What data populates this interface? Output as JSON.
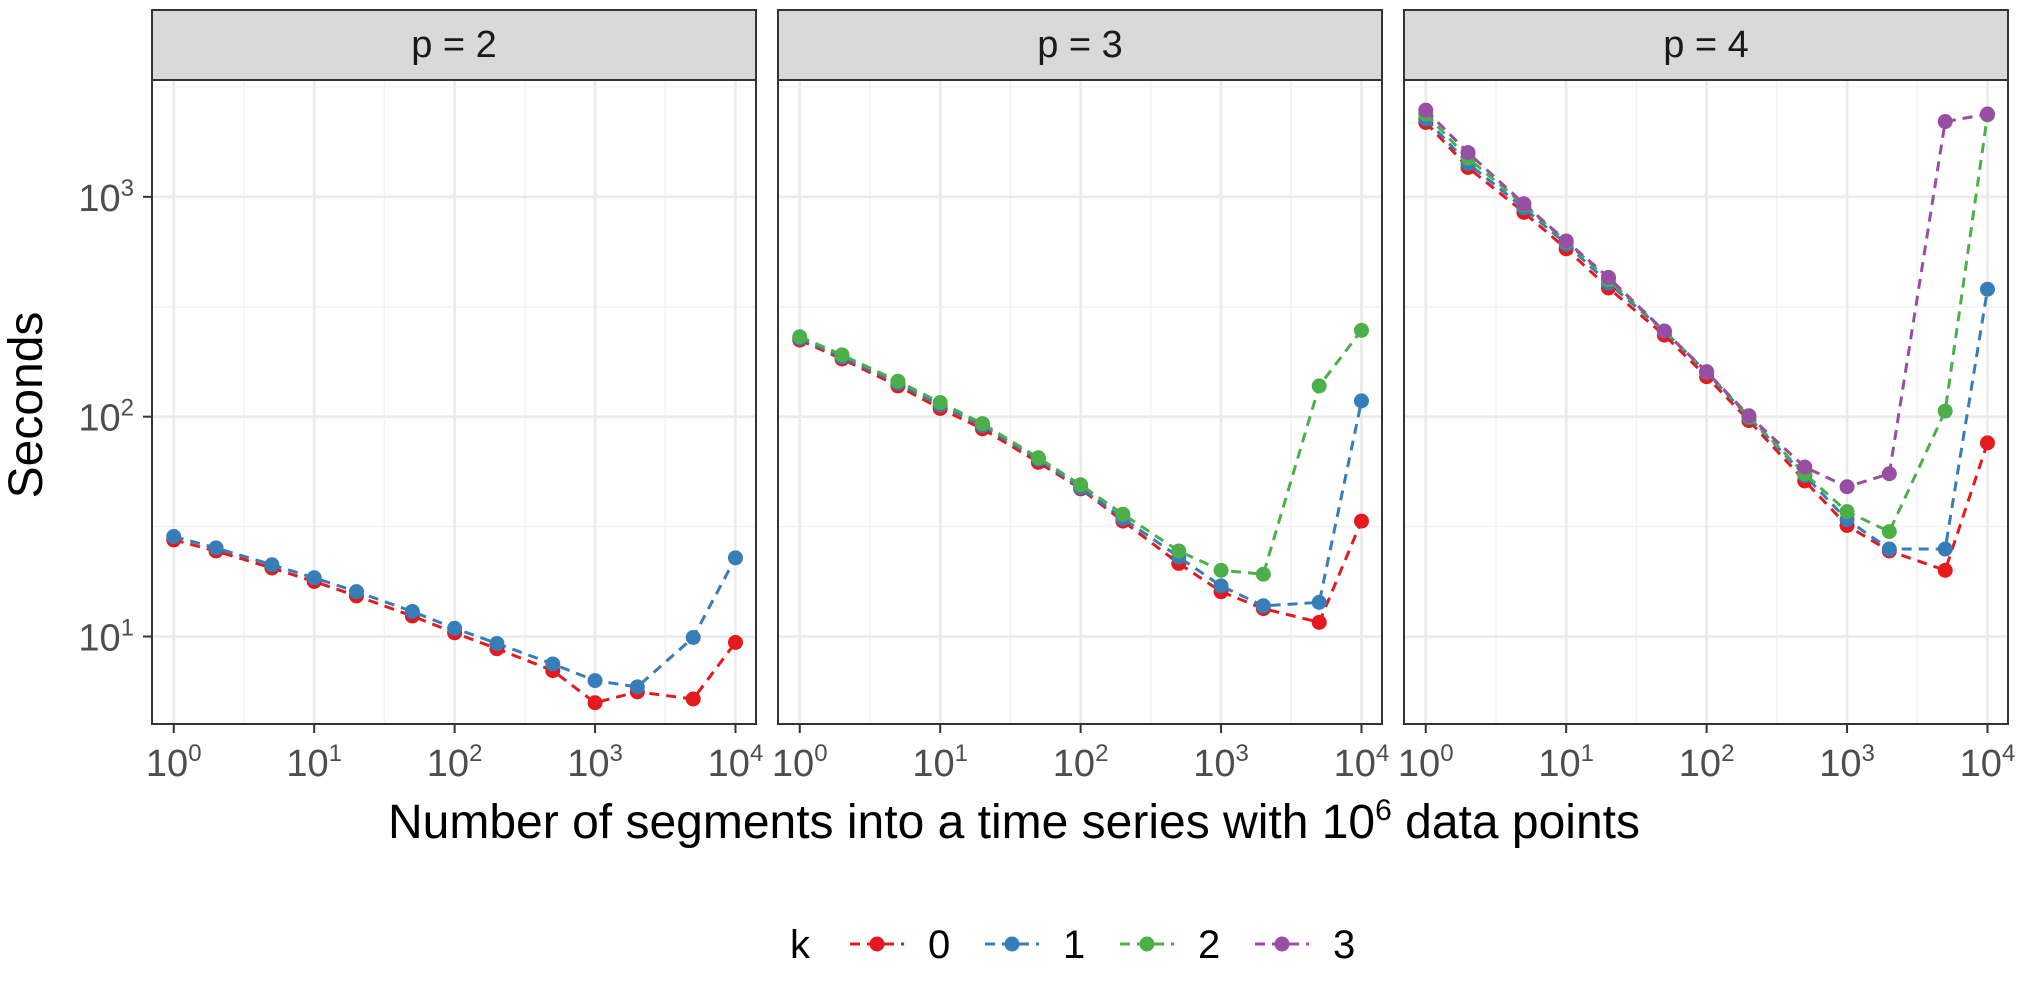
{
  "chart_data": {
    "type": "line",
    "facet_variable": "p",
    "xlabel": {
      "text": "Number of segments into a time series with 10",
      "superscript": "6",
      "suffix": " data points"
    },
    "ylabel": "Seconds",
    "x_scale": "log10",
    "y_scale": "log10",
    "xlim": [
      0.7,
      14000
    ],
    "ylim": [
      4,
      3400
    ],
    "x_ticks": [
      {
        "base": "10",
        "exp": "0",
        "value": 1
      },
      {
        "base": "10",
        "exp": "1",
        "value": 10
      },
      {
        "base": "10",
        "exp": "2",
        "value": 100
      },
      {
        "base": "10",
        "exp": "3",
        "value": 1000
      },
      {
        "base": "10",
        "exp": "4",
        "value": 10000
      }
    ],
    "y_ticks": [
      {
        "base": "10",
        "exp": "1",
        "value": 10
      },
      {
        "base": "10",
        "exp": "2",
        "value": 100
      },
      {
        "base": "10",
        "exp": "3",
        "value": 1000
      }
    ],
    "grid": true,
    "legend": {
      "position": "bottom",
      "title": "k",
      "entries": [
        {
          "label": "0",
          "color": "#e41a1c"
        },
        {
          "label": "1",
          "color": "#377eb8"
        },
        {
          "label": "2",
          "color": "#4daf4a"
        },
        {
          "label": "3",
          "color": "#984ea3"
        }
      ]
    },
    "x": [
      1,
      2,
      5,
      10,
      20,
      50,
      100,
      200,
      500,
      1000,
      2000,
      5000,
      10000
    ],
    "panels": [
      {
        "strip": "p = 2",
        "series": [
          {
            "name": "0",
            "color": "#e41a1c",
            "values": [
              27.5,
              24.5,
              20.5,
              17.8,
              15.3,
              12.4,
              10.4,
              8.8,
              7.0,
              5.0,
              5.6,
              5.2,
              9.4
            ]
          },
          {
            "name": "1",
            "color": "#377eb8",
            "values": [
              28.5,
              25.3,
              21.2,
              18.5,
              16.0,
              13.0,
              10.9,
              9.3,
              7.5,
              6.3,
              5.9,
              9.9,
              22.8
            ]
          }
        ]
      },
      {
        "strip": "p = 3",
        "series": [
          {
            "name": "0",
            "color": "#e41a1c",
            "values": [
              223,
              183,
              138,
              109,
              88,
              62,
              47,
              33.5,
              21.5,
              16.0,
              13.4,
              11.6,
              33.5
            ]
          },
          {
            "name": "1",
            "color": "#377eb8",
            "values": [
              227,
              187,
              142,
              113,
              91,
              64,
              47.5,
              34.5,
              23.0,
              17.0,
              13.8,
              14.3,
              118
            ]
          },
          {
            "name": "2",
            "color": "#4daf4a",
            "values": [
              231,
              191,
              145,
              116,
              93,
              65,
              49,
              36,
              24.5,
              20.0,
              19.2,
              138,
              247
            ]
          }
        ]
      },
      {
        "strip": "p = 4",
        "series": [
          {
            "name": "0",
            "color": "#e41a1c",
            "values": [
              2180,
              1360,
              850,
              580,
              385,
              235,
              152,
              96,
              51,
              32,
              24.5,
              20,
              76
            ]
          },
          {
            "name": "1",
            "color": "#377eb8",
            "values": [
              2260,
              1420,
              890,
              610,
              405,
              245,
              159,
              99,
              54,
              34,
              25,
              25,
              380
            ]
          },
          {
            "name": "2",
            "color": "#4daf4a",
            "values": [
              2380,
              1500,
              920,
              625,
              420,
              245,
              160,
              100,
              55,
              37,
              30,
              106,
              2360
            ]
          },
          {
            "name": "3",
            "color": "#984ea3",
            "values": [
              2480,
              1590,
              930,
              630,
              430,
              245,
              160,
              101,
              59,
              48,
              55,
              2200,
              2380
            ]
          }
        ]
      }
    ]
  }
}
